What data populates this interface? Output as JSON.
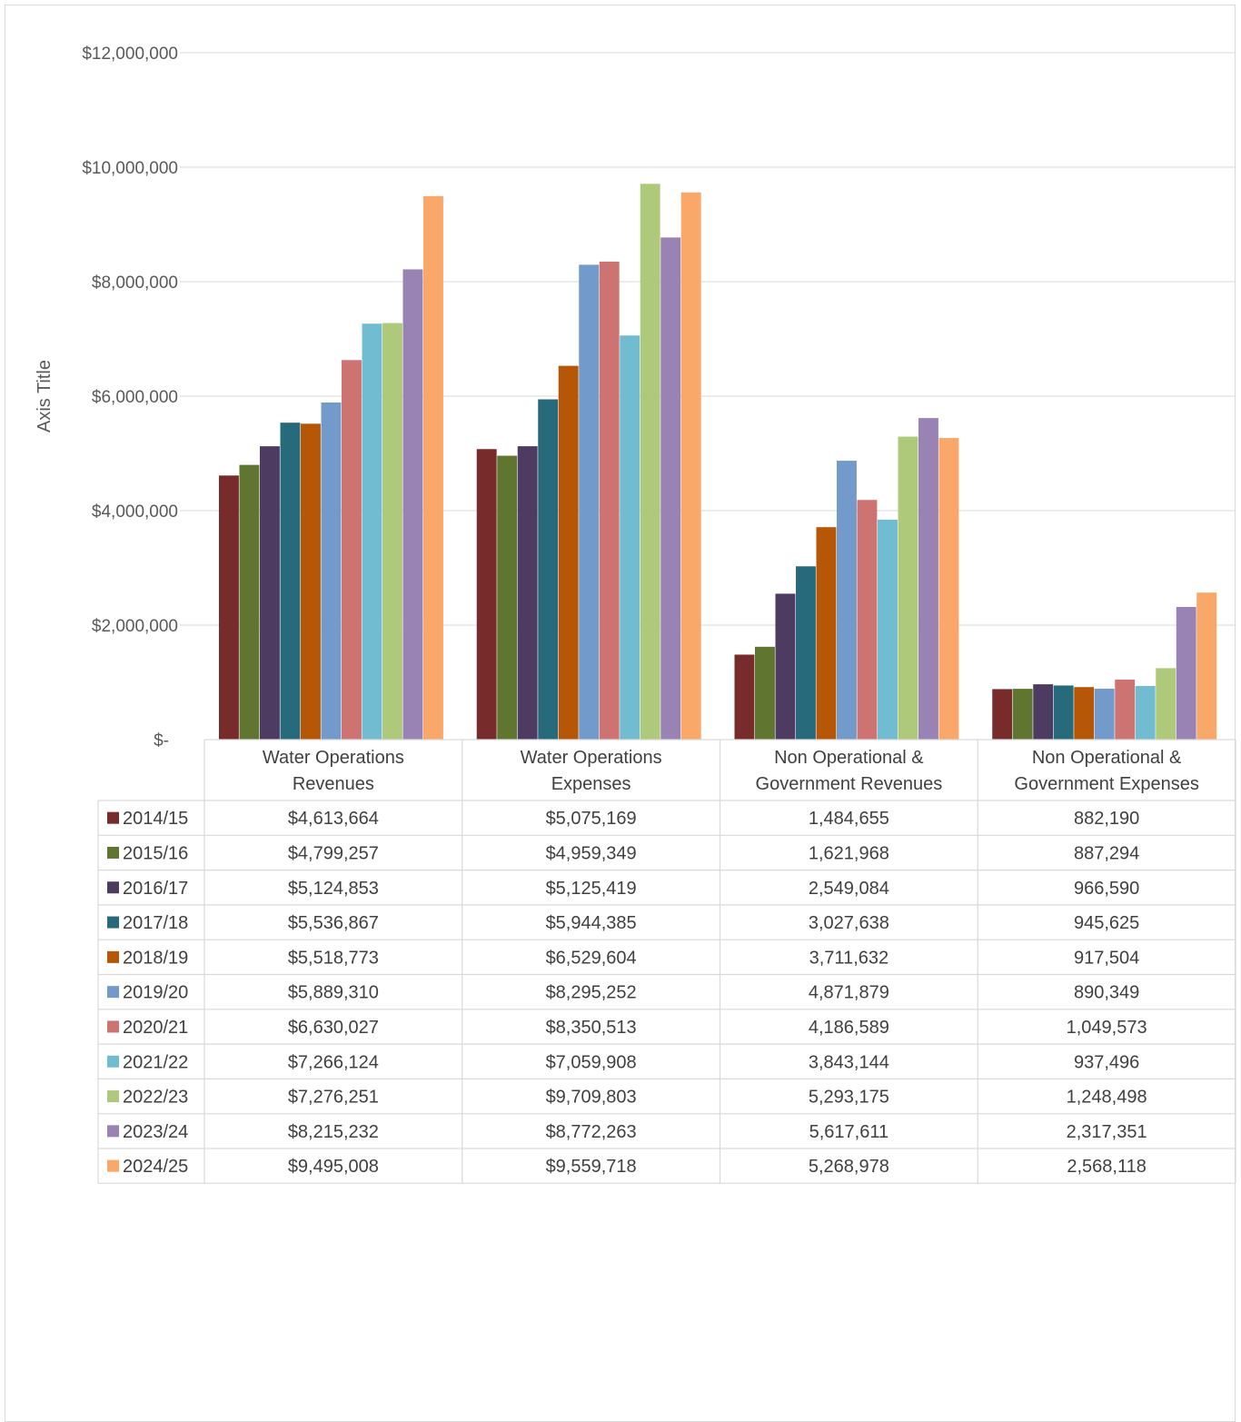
{
  "chart_data": {
    "type": "bar",
    "ylabel": "Axis Title",
    "ylim": [
      0,
      12000000
    ],
    "yticks": [
      0,
      2000000,
      4000000,
      6000000,
      8000000,
      10000000,
      12000000
    ],
    "ytick_labels": [
      "$-",
      "$2,000,000",
      "$4,000,000",
      "$6,000,000",
      "$8,000,000",
      "$10,000,000",
      "$12,000,000"
    ],
    "grid": true,
    "legend": "data-table",
    "categories": [
      [
        "Water Operations",
        "Revenues"
      ],
      [
        "Water Operations",
        "Expenses"
      ],
      [
        "Non Operational &",
        "Government Revenues"
      ],
      [
        "Non Operational &",
        "Government Expenses"
      ]
    ],
    "series": [
      {
        "name": "2014/15",
        "color": "#772b2b",
        "values": [
          4613664,
          5075169,
          1484655,
          882190
        ],
        "labels": [
          "$4,613,664",
          "$5,075,169",
          "1,484,655",
          "882,190"
        ]
      },
      {
        "name": "2015/16",
        "color": "#5f7530",
        "values": [
          4799257,
          4959349,
          1621968,
          887294
        ],
        "labels": [
          "$4,799,257",
          "$4,959,349",
          "1,621,968",
          "887,294"
        ]
      },
      {
        "name": "2016/17",
        "color": "#4d3b62",
        "values": [
          5124853,
          5125419,
          2549084,
          966590
        ],
        "labels": [
          "$5,124,853",
          "$5,125,419",
          "2,549,084",
          "966,590"
        ]
      },
      {
        "name": "2017/18",
        "color": "#276a7c",
        "values": [
          5536867,
          5944385,
          3027638,
          945625
        ],
        "labels": [
          "$5,536,867",
          "$5,944,385",
          "3,027,638",
          "945,625"
        ]
      },
      {
        "name": "2018/19",
        "color": "#b65708",
        "values": [
          5518773,
          6529604,
          3711632,
          917504
        ],
        "labels": [
          "$5,518,773",
          "$6,529,604",
          "3,711,632",
          "917,504"
        ]
      },
      {
        "name": "2019/20",
        "color": "#729aca",
        "values": [
          5889310,
          8295252,
          4871879,
          890349
        ],
        "labels": [
          "$5,889,310",
          "$8,295,252",
          "4,871,879",
          "890,349"
        ]
      },
      {
        "name": "2020/21",
        "color": "#cd7371",
        "values": [
          6630027,
          8350513,
          4186589,
          1049573
        ],
        "labels": [
          "$6,630,027",
          "$8,350,513",
          "4,186,589",
          "1,049,573"
        ]
      },
      {
        "name": "2021/22",
        "color": "#71bcd1",
        "values": [
          7266124,
          7059908,
          3843144,
          937496
        ],
        "labels": [
          "$7,266,124",
          "$7,059,908",
          "3,843,144",
          "937,496"
        ]
      },
      {
        "name": "2022/23",
        "color": "#afc97a",
        "values": [
          7276251,
          9709803,
          5293175,
          1248498
        ],
        "labels": [
          "$7,276,251",
          "$9,709,803",
          "5,293,175",
          "1,248,498"
        ]
      },
      {
        "name": "2023/24",
        "color": "#9983b5",
        "values": [
          8215232,
          8772263,
          5617611,
          2317351
        ],
        "labels": [
          "$8,215,232",
          "$8,772,263",
          "5,617,611",
          "2,317,351"
        ]
      },
      {
        "name": "2024/25",
        "color": "#f9a869",
        "values": [
          9495008,
          9559718,
          5268978,
          2568118
        ],
        "labels": [
          "$9,495,008",
          "$9,559,718",
          "5,268,978",
          "2,568,118"
        ]
      }
    ]
  }
}
